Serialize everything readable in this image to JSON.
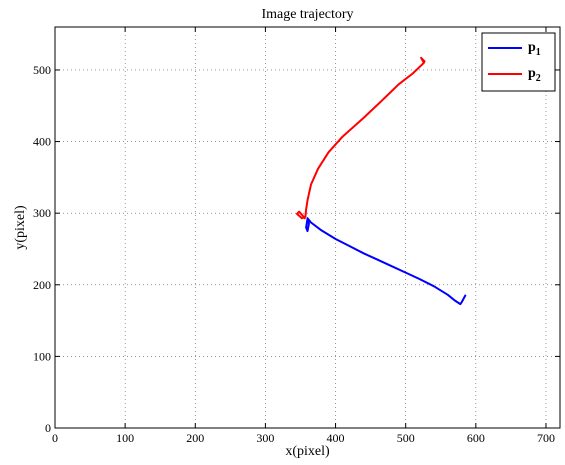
{
  "chart_data": {
    "type": "line",
    "title": "Image trajectory",
    "xlabel": "x(pixel)",
    "ylabel": "y(pixel)",
    "xlim": [
      0,
      720
    ],
    "ylim": [
      0,
      560
    ],
    "xticks": [
      0,
      100,
      200,
      300,
      400,
      500,
      600,
      700
    ],
    "yticks": [
      0,
      100,
      200,
      300,
      400,
      500
    ],
    "grid": true,
    "legend_position": "top-right",
    "series": [
      {
        "name": "p",
        "name_subscript": "1",
        "color": "#0000ff",
        "x": [
          585,
          580,
          578,
          570,
          560,
          540,
          520,
          500,
          480,
          460,
          440,
          420,
          400,
          380,
          365,
          360,
          362,
          360,
          358,
          360
        ],
        "y": [
          185,
          176,
          173,
          178,
          186,
          198,
          208,
          217,
          226,
          235,
          244,
          254,
          264,
          276,
          287,
          293,
          285,
          275,
          280,
          292
        ]
      },
      {
        "name": "p",
        "name_subscript": "2",
        "color": "#ff0000",
        "x": [
          527,
          522,
          526,
          510,
          490,
          470,
          440,
          410,
          390,
          375,
          365,
          360,
          358,
          357,
          352,
          345,
          348,
          352,
          356
        ],
        "y": [
          512,
          517,
          510,
          495,
          480,
          461,
          433,
          407,
          385,
          362,
          340,
          318,
          305,
          295,
          293,
          299,
          302,
          298,
          293
        ]
      }
    ]
  }
}
